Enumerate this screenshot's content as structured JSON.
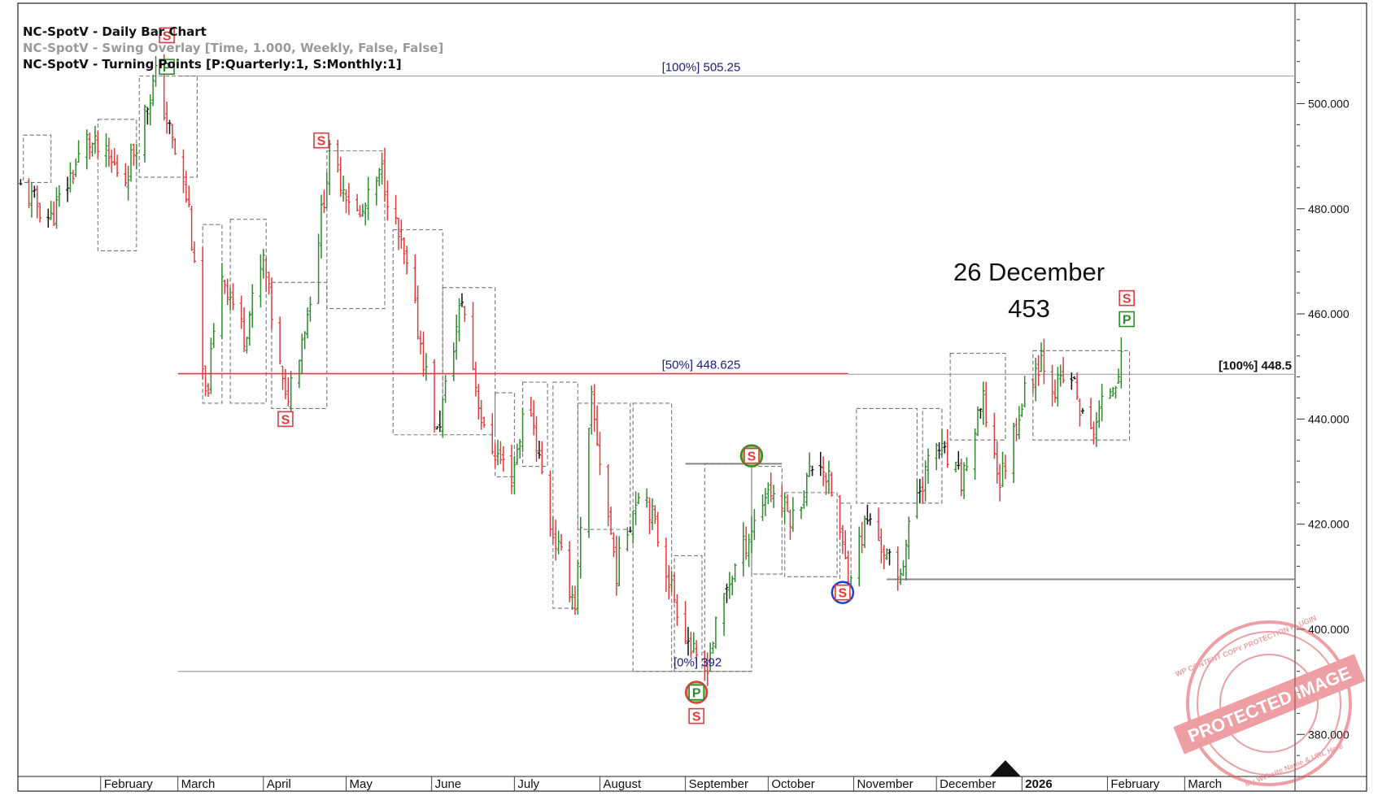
{
  "header": {
    "line1": "NC-SpotV - Daily Bar Chart",
    "line2": "NC-SpotV - Swing Overlay [Time, 1.000, Weekly, False, False]",
    "line3": "NC-SpotV - Turning Points [P:Quarterly:1, S:Monthly:1]"
  },
  "annotation": {
    "date": "26 December",
    "value": "453"
  },
  "watermark": {
    "main": "PROTECTED IMAGE",
    "top": "WP CONTENT COPY PROTECTION PLUGIN",
    "bottom": "My Website Name & URL Here"
  },
  "colors": {
    "up_bar": "#2e8b2e",
    "down_bar": "#e03c3c",
    "neutral_bar": "#111111",
    "marker_S": "#e03c3c",
    "marker_P": "#2e8b2e",
    "fib_red": "#e03c3c",
    "level_gray": "#999999",
    "circle_blue": "#1f3fd6"
  },
  "chart_data": {
    "type": "bar",
    "title": "NC-SpotV - Daily Bar Chart",
    "xlabel": "",
    "ylabel": "",
    "ylim": [
      372,
      516
    ],
    "y_ticks": [
      380,
      400,
      420,
      440,
      460,
      480,
      500
    ],
    "y_tick_labels": [
      "380.000",
      "400.000",
      "420.000",
      "440.000",
      "460.000",
      "480.000",
      "500.000"
    ],
    "x_axis": {
      "start": "2025-01-02",
      "end": "2026-04-10",
      "months": [
        {
          "label": "February",
          "date": "2025-02-01"
        },
        {
          "label": "March",
          "date": "2025-03-01"
        },
        {
          "label": "April",
          "date": "2025-04-01"
        },
        {
          "label": "May",
          "date": "2025-05-01"
        },
        {
          "label": "June",
          "date": "2025-06-01"
        },
        {
          "label": "July",
          "date": "2025-07-01"
        },
        {
          "label": "August",
          "date": "2025-08-01"
        },
        {
          "label": "September",
          "date": "2025-09-01"
        },
        {
          "label": "October",
          "date": "2025-10-01"
        },
        {
          "label": "November",
          "date": "2025-11-01"
        },
        {
          "label": "December",
          "date": "2025-12-01"
        },
        {
          "label": "2026",
          "date": "2026-01-01",
          "bold": true
        },
        {
          "label": "February",
          "date": "2026-02-01"
        },
        {
          "label": "March",
          "date": "2026-03-01"
        }
      ],
      "current_marker": "2025-12-26"
    },
    "swing_path": [
      {
        "date": "2025-01-03",
        "price": 484
      },
      {
        "date": "2025-01-14",
        "price": 478
      },
      {
        "date": "2025-01-27",
        "price": 493
      },
      {
        "date": "2025-02-10",
        "price": 486
      },
      {
        "date": "2025-02-21",
        "price": 505.25
      },
      {
        "date": "2025-03-05",
        "price": 480
      },
      {
        "date": "2025-03-11",
        "price": 443
      },
      {
        "date": "2025-03-17",
        "price": 468
      },
      {
        "date": "2025-03-25",
        "price": 456
      },
      {
        "date": "2025-04-01",
        "price": 470
      },
      {
        "date": "2025-04-09",
        "price": 443
      },
      {
        "date": "2025-04-17",
        "price": 460
      },
      {
        "date": "2025-04-25",
        "price": 490
      },
      {
        "date": "2025-05-06",
        "price": 478
      },
      {
        "date": "2025-05-14",
        "price": 487
      },
      {
        "date": "2025-05-24",
        "price": 466
      },
      {
        "date": "2025-06-03",
        "price": 437
      },
      {
        "date": "2025-06-12",
        "price": 463
      },
      {
        "date": "2025-06-20",
        "price": 437
      },
      {
        "date": "2025-06-30",
        "price": 429
      },
      {
        "date": "2025-07-06",
        "price": 445
      },
      {
        "date": "2025-07-14",
        "price": 420
      },
      {
        "date": "2025-07-23",
        "price": 405
      },
      {
        "date": "2025-07-29",
        "price": 443
      },
      {
        "date": "2025-08-07",
        "price": 411
      },
      {
        "date": "2025-08-16",
        "price": 429
      },
      {
        "date": "2025-08-28",
        "price": 406
      },
      {
        "date": "2025-09-07",
        "price": 390
      },
      {
        "date": "2025-09-16",
        "price": 408
      },
      {
        "date": "2025-09-24",
        "price": 418
      },
      {
        "date": "2025-10-01",
        "price": 427
      },
      {
        "date": "2025-10-10",
        "price": 421
      },
      {
        "date": "2025-10-19",
        "price": 434
      },
      {
        "date": "2025-10-24",
        "price": 426
      },
      {
        "date": "2025-10-30",
        "price": 410
      },
      {
        "date": "2025-11-06",
        "price": 421
      },
      {
        "date": "2025-11-12",
        "price": 415
      },
      {
        "date": "2025-11-17",
        "price": 409
      },
      {
        "date": "2025-11-24",
        "price": 426
      },
      {
        "date": "2025-12-01",
        "price": 435
      },
      {
        "date": "2025-12-10",
        "price": 428
      },
      {
        "date": "2025-12-18",
        "price": 443
      },
      {
        "date": "2025-12-24",
        "price": 428
      },
      {
        "date": "2026-01-02",
        "price": 445
      },
      {
        "date": "2026-01-08",
        "price": 452
      },
      {
        "date": "2026-01-13",
        "price": 446
      },
      {
        "date": "2026-01-19",
        "price": 448
      },
      {
        "date": "2026-01-25",
        "price": 436
      },
      {
        "date": "2026-02-02",
        "price": 446
      },
      {
        "date": "2026-02-08",
        "price": 453
      }
    ],
    "price_levels": [
      {
        "label": "[100%] 505.25",
        "value": 505.25,
        "from": "2025-03-01",
        "to": "2026-04-10",
        "color": "#aaaaaa"
      },
      {
        "label": "[50%] 448.625",
        "value": 448.625,
        "from": "2025-03-01",
        "to": "2025-10-30",
        "color": "#e03c3c"
      },
      {
        "label": "[0%] 392",
        "value": 392,
        "from": "2025-03-01",
        "to": "2025-09-25",
        "color": "#aaaaaa"
      },
      {
        "label": "[100%] 448.5",
        "value": 448.5,
        "from": "2025-10-30",
        "to": "2026-04-10",
        "color": "#aaaaaa"
      },
      {
        "label": "",
        "value": 431.5,
        "from": "2025-09-01",
        "to": "2025-10-06",
        "color": "#888888"
      },
      {
        "label": "",
        "value": 409.5,
        "from": "2025-11-13",
        "to": "2026-04-10",
        "color": "#888888"
      }
    ],
    "swing_boxes": [
      {
        "from": "2025-01-04",
        "to": "2025-01-14",
        "low": 485,
        "high": 494
      },
      {
        "from": "2025-01-31",
        "to": "2025-02-14",
        "low": 472,
        "high": 497
      },
      {
        "from": "2025-02-15",
        "to": "2025-03-08",
        "low": 486,
        "high": 505.25
      },
      {
        "from": "2025-03-10",
        "to": "2025-03-17",
        "low": 443,
        "high": 477
      },
      {
        "from": "2025-03-20",
        "to": "2025-04-02",
        "low": 443,
        "high": 478
      },
      {
        "from": "2025-04-04",
        "to": "2025-04-24",
        "low": 442,
        "high": 466
      },
      {
        "from": "2025-04-24",
        "to": "2025-05-15",
        "low": 461,
        "high": 491
      },
      {
        "from": "2025-05-18",
        "to": "2025-06-05",
        "low": 437,
        "high": 476
      },
      {
        "from": "2025-06-05",
        "to": "2025-06-24",
        "low": 437,
        "high": 465
      },
      {
        "from": "2025-06-24",
        "to": "2025-07-01",
        "low": 429,
        "high": 445
      },
      {
        "from": "2025-07-04",
        "to": "2025-07-13",
        "low": 431,
        "high": 447
      },
      {
        "from": "2025-07-15",
        "to": "2025-07-24",
        "low": 404,
        "high": 447
      },
      {
        "from": "2025-07-24",
        "to": "2025-08-12",
        "low": 419,
        "high": 443
      },
      {
        "from": "2025-08-13",
        "to": "2025-08-27",
        "low": 392,
        "high": 443
      },
      {
        "from": "2025-08-28",
        "to": "2025-09-07",
        "low": 392,
        "high": 414
      },
      {
        "from": "2025-09-08",
        "to": "2025-09-25",
        "low": 392,
        "high": 431.5
      },
      {
        "from": "2025-09-25",
        "to": "2025-10-06",
        "low": 410.5,
        "high": 431
      },
      {
        "from": "2025-10-07",
        "to": "2025-10-26",
        "low": 410,
        "high": 426
      },
      {
        "from": "2025-10-27",
        "to": "2025-10-31",
        "low": 409,
        "high": 424
      },
      {
        "from": "2025-11-02",
        "to": "2025-11-24",
        "low": 424,
        "high": 442
      },
      {
        "from": "2025-11-26",
        "to": "2025-12-03",
        "low": 424,
        "high": 442
      },
      {
        "from": "2025-12-06",
        "to": "2025-12-26",
        "low": 436,
        "high": 452.5
      },
      {
        "from": "2026-01-05",
        "to": "2026-02-09",
        "low": 436,
        "high": 453
      }
    ],
    "turning_points": [
      {
        "type": "S",
        "date": "2025-02-25",
        "price": 513,
        "style": "square"
      },
      {
        "type": "P",
        "date": "2025-02-25",
        "price": 507,
        "style": "square"
      },
      {
        "type": "S",
        "date": "2025-04-22",
        "price": 493,
        "style": "square"
      },
      {
        "type": "S",
        "date": "2025-04-09",
        "price": 440,
        "style": "square"
      },
      {
        "type": "S",
        "date": "2025-09-25",
        "price": 433,
        "style": "circle-green"
      },
      {
        "type": "P",
        "date": "2025-09-05",
        "price": 388,
        "style": "circle-green"
      },
      {
        "type": "S",
        "date": "2025-09-05",
        "price": 383.5,
        "style": "square"
      },
      {
        "type": "S",
        "date": "2025-10-28",
        "price": 407,
        "style": "circle-blue"
      },
      {
        "type": "S",
        "date": "2026-02-08",
        "price": 463,
        "style": "square"
      },
      {
        "type": "P",
        "date": "2026-02-08",
        "price": 459,
        "style": "square"
      }
    ]
  }
}
